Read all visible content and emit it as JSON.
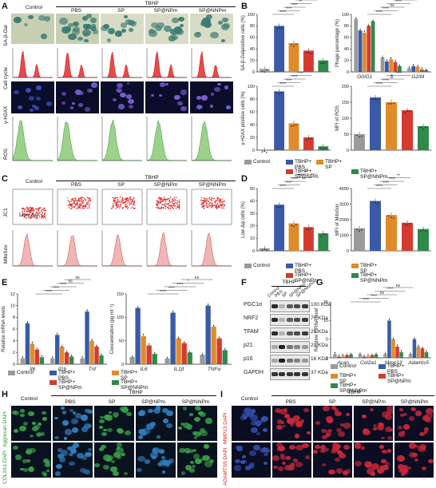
{
  "colors": {
    "control": "#9a9a9a",
    "pbs": "#3a5aa8",
    "sp": "#e08b2a",
    "sp_npm": "#d63a2f",
    "sp_nnpm": "#2f8a4a"
  },
  "panel_letters": [
    "A",
    "B",
    "C",
    "D",
    "E",
    "F",
    "G",
    "H",
    "I"
  ],
  "groups": {
    "tbhp": "TBHP",
    "control": "Control",
    "pbs": "PBS",
    "sp": "SP",
    "sp_npm": "SP@NPm",
    "sp_nnpm": "SP@NNPm"
  },
  "panelA": {
    "rows": [
      "SA-β-Gal",
      "Cell cycle",
      "γ-H2AX",
      "ROS"
    ]
  },
  "panelC": {
    "rows": [
      "JC1",
      "MitoSox"
    ],
    "inset": "Low Δψ"
  },
  "panelH": {
    "rows": [
      "Aggrecan DAPI",
      "COL2A1 DAPI"
    ]
  },
  "panelI": {
    "rows": [
      "MMP13 DAPI",
      "ADAMTS5 DAPI"
    ]
  },
  "legend": {
    "control": "Control",
    "pbs": "TBHP+\nPBS",
    "sp": "TBHP+\nSP",
    "sp_npm": "TBHP+\nSP@NPm",
    "sp_nnpm": "TBHP+\nSP@NNPm"
  },
  "panelF": {
    "proteins": [
      "PGC1α",
      "NRF2",
      "TFAM",
      "p21",
      "p16",
      "GAPDH"
    ],
    "sizes": [
      "100 KDa",
      "70 KDa",
      "25 KDa",
      "21 KDa",
      "16 KDa",
      "37 KDa"
    ],
    "lanes": [
      "Control",
      "PBS",
      "SP",
      "SP@NPm",
      "SP@NNPm"
    ]
  },
  "chart_data": [
    {
      "id": "B1",
      "type": "bar",
      "ylabel": "SA-β-Galpositive cells (%)",
      "ylim": [
        0,
        100
      ],
      "yticks": [
        0,
        20,
        40,
        60,
        80,
        100
      ],
      "series": [
        {
          "values": [
            5,
            80,
            50,
            37,
            20
          ]
        }
      ],
      "sig": [
        "****",
        "****",
        "****",
        "**",
        "****"
      ]
    },
    {
      "id": "B2",
      "type": "bar",
      "ylabel": "Phage percentage (%)",
      "ylim": [
        0,
        100
      ],
      "yticks": [
        0,
        20,
        40,
        60,
        80,
        100
      ],
      "categories": [
        "G0/G1",
        "S",
        "G2/M"
      ],
      "series": [
        {
          "values": [
            92,
            25,
            6
          ]
        },
        {
          "values": [
            72,
            18,
            10
          ]
        },
        {
          "values": [
            68,
            22,
            9
          ]
        },
        {
          "values": [
            80,
            17,
            4
          ]
        },
        {
          "values": [
            88,
            10,
            3
          ]
        }
      ],
      "sig": [
        "****",
        "****",
        "ns",
        "****",
        "****",
        "ns"
      ]
    },
    {
      "id": "B3",
      "type": "bar",
      "ylabel": "γ-H2AX positive cells (%)",
      "ylim": [
        0,
        100
      ],
      "yticks": [
        0,
        20,
        40,
        60,
        80,
        100
      ],
      "series": [
        {
          "values": [
            0,
            92,
            42,
            20,
            6
          ]
        }
      ],
      "sig": [
        "****",
        "****",
        "****",
        "****"
      ]
    },
    {
      "id": "B4",
      "type": "bar",
      "ylabel": "MFI of ROS",
      "ylim": [
        0,
        200
      ],
      "yticks": [
        0,
        50,
        100,
        150,
        200
      ],
      "series": [
        {
          "values": [
            50,
            165,
            150,
            125,
            75
          ]
        }
      ],
      "sig": [
        "****",
        "****",
        "*",
        "****"
      ]
    },
    {
      "id": "D1",
      "type": "bar",
      "ylabel": "Low Δψ cells (%)",
      "ylim": [
        0,
        50
      ],
      "yticks": [
        0,
        10,
        20,
        30,
        40,
        50
      ],
      "series": [
        {
          "values": [
            2,
            37,
            22,
            19,
            14
          ]
        }
      ],
      "sig": [
        "****",
        "****",
        "****",
        "****",
        "**"
      ]
    },
    {
      "id": "D2",
      "type": "bar",
      "ylabel": "MFI of MitoSox",
      "ylim": [
        0,
        4000
      ],
      "yticks": [
        0,
        1000,
        2000,
        3000,
        4000
      ],
      "series": [
        {
          "values": [
            1450,
            3200,
            2300,
            1800,
            1400
          ]
        }
      ],
      "sig": [
        "****",
        "****",
        "****",
        "**"
      ]
    },
    {
      "id": "E1",
      "type": "bar",
      "ylabel": "Relative mRNA levels",
      "ylim": [
        0,
        12
      ],
      "yticks": [
        0,
        2,
        4,
        6,
        8,
        10,
        12
      ],
      "categories": [
        "Il6",
        "Il1b",
        "Tnf"
      ],
      "series": [
        {
          "values": [
            1,
            1,
            1
          ]
        },
        {
          "values": [
            7,
            5,
            9
          ]
        },
        {
          "values": [
            3.5,
            3,
            4
          ]
        },
        {
          "values": [
            2.5,
            2,
            3
          ]
        },
        {
          "values": [
            1.2,
            1.3,
            1.5
          ]
        }
      ],
      "sig": [
        "****",
        "****",
        "****",
        "ns",
        "ns"
      ]
    },
    {
      "id": "E2",
      "type": "bar",
      "ylabel": "Concentration (pg ml⁻¹)",
      "ylim": [
        0,
        150
      ],
      "yticks": [
        0,
        50,
        100,
        150
      ],
      "categories": [
        "IL6",
        "IL1β",
        "TNFα"
      ],
      "series": [
        {
          "values": [
            15,
            12,
            20
          ]
        },
        {
          "values": [
            120,
            110,
            125
          ]
        },
        {
          "values": [
            60,
            55,
            80
          ]
        },
        {
          "values": [
            40,
            45,
            55
          ]
        },
        {
          "values": [
            22,
            25,
            30
          ]
        }
      ],
      "sig": [
        "****",
        "****",
        "****",
        "*",
        "ns"
      ]
    },
    {
      "id": "G1",
      "type": "bar",
      "ylabel": "Relative mRNA level",
      "ylim": [
        0,
        15
      ],
      "yticks": [
        0,
        5,
        10,
        15
      ],
      "categories": [
        "Acan",
        "Col2a1",
        "Mmp13",
        "Adamts5"
      ],
      "series": [
        {
          "values": [
            1,
            1,
            1,
            1
          ]
        },
        {
          "values": [
            0.3,
            0.3,
            10,
            5
          ]
        },
        {
          "values": [
            0.5,
            0.5,
            5,
            3
          ]
        },
        {
          "values": [
            0.7,
            0.7,
            3,
            2.5
          ]
        },
        {
          "values": [
            0.9,
            0.9,
            1.5,
            1.5
          ]
        }
      ],
      "sig": [
        "****",
        "****",
        "ns",
        "****",
        "ns"
      ]
    }
  ]
}
